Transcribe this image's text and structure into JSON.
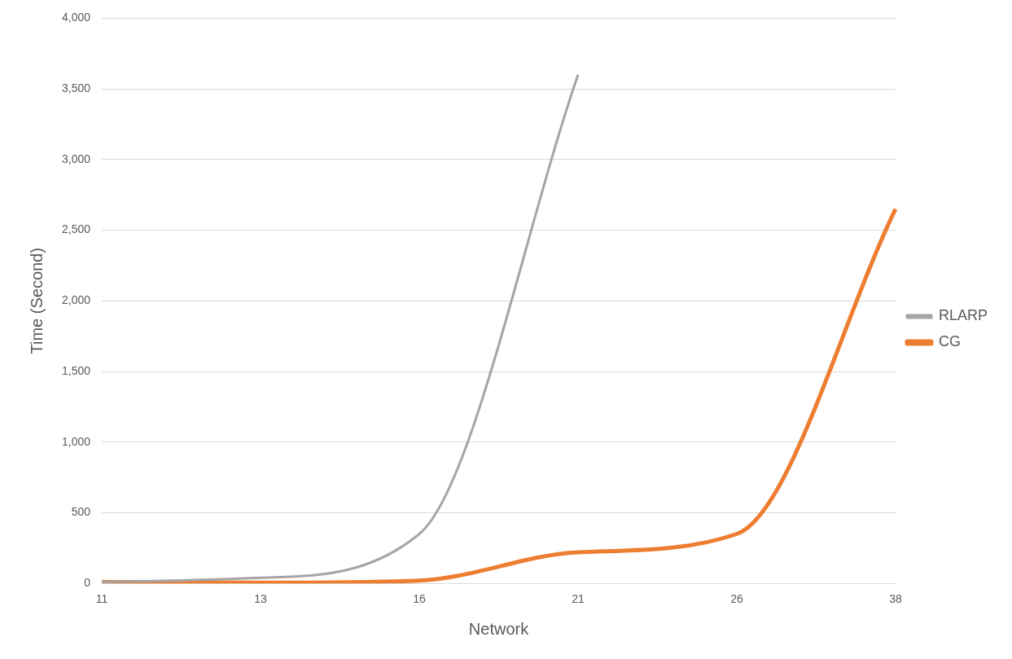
{
  "chart_data": {
    "type": "line",
    "xlabel": "Network",
    "ylabel": "Time (Second)",
    "categories": [
      "11",
      "13",
      "16",
      "21",
      "26",
      "38"
    ],
    "series": [
      {
        "name": "RLARP",
        "color": "#a5a5a5",
        "values": [
          10,
          40,
          350,
          3600,
          null,
          null
        ]
      },
      {
        "name": "CG",
        "color": "#ed7d31",
        "values": [
          10,
          5,
          20,
          220,
          350,
          2650
        ]
      }
    ],
    "ylim": [
      0,
      4000
    ],
    "yticks": [
      {
        "value": 0,
        "label": "0"
      },
      {
        "value": 500,
        "label": "500"
      },
      {
        "value": 1000,
        "label": "1,000"
      },
      {
        "value": 1500,
        "label": "1,500"
      },
      {
        "value": 2000,
        "label": "2,000"
      },
      {
        "value": 2500,
        "label": "2,500"
      },
      {
        "value": 3000,
        "label": "3,000"
      },
      {
        "value": 3500,
        "label": "3,500"
      },
      {
        "value": 4000,
        "label": "4,000"
      }
    ],
    "grid": "y",
    "legend": "right",
    "marker": "none",
    "line_style": "solid"
  }
}
